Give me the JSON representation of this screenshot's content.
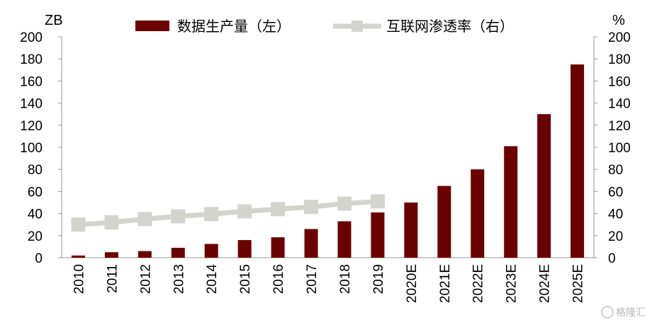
{
  "chart_data": {
    "type": "bar",
    "categories": [
      "2010",
      "2011",
      "2012",
      "2013",
      "2014",
      "2015",
      "2016",
      "2017",
      "2018",
      "2019",
      "2020E",
      "2021E",
      "2022E",
      "2023E",
      "2024E",
      "2025E"
    ],
    "series": [
      {
        "name": "数据生产量（左）",
        "type": "bar",
        "axis": "left",
        "color": "#6b0000",
        "values": [
          2,
          5,
          6,
          9,
          12.5,
          16,
          18.5,
          26,
          33,
          41,
          50,
          65,
          80,
          101,
          130,
          175
        ]
      },
      {
        "name": "互联网渗透率（右）",
        "type": "line",
        "axis": "right",
        "color": "#d4d4cf",
        "values": [
          30,
          32,
          35,
          37.5,
          39.5,
          42,
          44,
          46,
          49,
          51,
          null,
          null,
          null,
          null,
          null,
          null
        ]
      }
    ],
    "y_left": {
      "unit": "ZB",
      "ylim": [
        0,
        200
      ],
      "ticks": [
        "0",
        "20",
        "40",
        "60",
        "80",
        "100",
        "120",
        "140",
        "160",
        "180",
        "200"
      ]
    },
    "y_right": {
      "unit": "%",
      "ylim": [
        0,
        200
      ],
      "ticks": [
        "0",
        "20",
        "40",
        "60",
        "80",
        "100",
        "120",
        "140",
        "160",
        "180",
        "200"
      ]
    },
    "legend_position": "top"
  },
  "watermark": "格隆汇"
}
